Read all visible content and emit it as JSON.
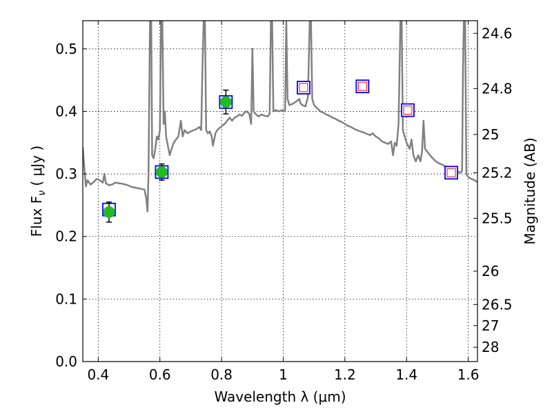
{
  "chart_data": {
    "type": "scatter",
    "xlabel": "Wavelength  λ (μm)",
    "ylabel": "Flux  F",
    "ylabel_sub": "ν",
    "ylabel_unit": " ( μJy )",
    "y2label": "Magnitude (AB)",
    "xlim": [
      0.35,
      1.63
    ],
    "ylim": [
      0.0,
      0.545
    ],
    "grid": true,
    "x_ticks": [
      {
        "value": 0.4,
        "label": "0.4"
      },
      {
        "value": 0.6,
        "label": "0.6"
      },
      {
        "value": 0.8,
        "label": "0.8"
      },
      {
        "value": 1.0,
        "label": "1"
      },
      {
        "value": 1.2,
        "label": "1.2"
      },
      {
        "value": 1.4,
        "label": "1.4"
      },
      {
        "value": 1.6,
        "label": "1.6"
      }
    ],
    "y_ticks": [
      {
        "value": 0.0,
        "label": "0.0"
      },
      {
        "value": 0.1,
        "label": "0.1"
      },
      {
        "value": 0.2,
        "label": "0.2"
      },
      {
        "value": 0.3,
        "label": "0.3"
      },
      {
        "value": 0.4,
        "label": "0.4"
      },
      {
        "value": 0.5,
        "label": "0.5"
      }
    ],
    "y2_ticks": [
      {
        "mag": 24.6,
        "label": "24.6"
      },
      {
        "mag": 24.8,
        "label": "24.8"
      },
      {
        "mag": 25.0,
        "label": "25"
      },
      {
        "mag": 25.2,
        "label": "25.2"
      },
      {
        "mag": 25.5,
        "label": "25.5"
      },
      {
        "mag": 26.0,
        "label": "26"
      },
      {
        "mag": 26.5,
        "label": "26.5"
      },
      {
        "mag": 27.0,
        "label": "27"
      },
      {
        "mag": 28.0,
        "label": "28"
      }
    ],
    "series": [
      {
        "kind": "observed",
        "color": "#22bb22",
        "points": [
          {
            "x": 0.435,
            "y": 0.239,
            "err": 0.016
          },
          {
            "x": 0.606,
            "y": 0.303,
            "err": 0.013
          },
          {
            "x": 0.814,
            "y": 0.415,
            "err": 0.019
          }
        ]
      },
      {
        "kind": "model",
        "color": "#0000ff",
        "points": [
          {
            "x": 0.435,
            "y": 0.243
          },
          {
            "x": 0.606,
            "y": 0.303
          },
          {
            "x": 0.814,
            "y": 0.415
          }
        ]
      },
      {
        "kind": "upper",
        "color": "#0000ff",
        "inner_color": "#ff0000",
        "points": [
          {
            "x": 1.066,
            "y": 0.438
          },
          {
            "x": 1.257,
            "y": 0.44
          },
          {
            "x": 1.404,
            "y": 0.402
          },
          {
            "x": 1.545,
            "y": 0.302
          }
        ]
      }
    ],
    "sed_curve": {
      "color": "#808080",
      "points": [
        [
          0.35,
          0.343
        ],
        [
          0.355,
          0.31
        ],
        [
          0.36,
          0.28
        ],
        [
          0.365,
          0.29
        ],
        [
          0.375,
          0.283
        ],
        [
          0.385,
          0.287
        ],
        [
          0.395,
          0.292
        ],
        [
          0.405,
          0.29
        ],
        [
          0.415,
          0.286
        ],
        [
          0.42,
          0.3
        ],
        [
          0.425,
          0.285
        ],
        [
          0.435,
          0.282
        ],
        [
          0.445,
          0.283
        ],
        [
          0.455,
          0.286
        ],
        [
          0.47,
          0.285
        ],
        [
          0.49,
          0.283
        ],
        [
          0.51,
          0.279
        ],
        [
          0.53,
          0.277
        ],
        [
          0.55,
          0.275
        ],
        [
          0.556,
          0.26
        ],
        [
          0.56,
          0.24
        ],
        [
          0.563,
          0.3
        ],
        [
          0.568,
          0.545
        ],
        [
          0.572,
          0.545
        ],
        [
          0.575,
          0.33
        ],
        [
          0.58,
          0.325
        ],
        [
          0.585,
          0.34
        ],
        [
          0.59,
          0.36
        ],
        [
          0.595,
          0.355
        ],
        [
          0.6,
          0.37
        ],
        [
          0.604,
          0.545
        ],
        [
          0.608,
          0.545
        ],
        [
          0.612,
          0.38
        ],
        [
          0.616,
          0.4
        ],
        [
          0.62,
          0.36
        ],
        [
          0.626,
          0.345
        ],
        [
          0.632,
          0.33
        ],
        [
          0.638,
          0.34
        ],
        [
          0.645,
          0.35
        ],
        [
          0.652,
          0.355
        ],
        [
          0.66,
          0.36
        ],
        [
          0.668,
          0.385
        ],
        [
          0.674,
          0.36
        ],
        [
          0.68,
          0.37
        ],
        [
          0.69,
          0.365
        ],
        [
          0.7,
          0.368
        ],
        [
          0.71,
          0.37
        ],
        [
          0.72,
          0.372
        ],
        [
          0.728,
          0.375
        ],
        [
          0.734,
          0.37
        ],
        [
          0.738,
          0.47
        ],
        [
          0.742,
          0.545
        ],
        [
          0.746,
          0.545
        ],
        [
          0.75,
          0.37
        ],
        [
          0.756,
          0.365
        ],
        [
          0.762,
          0.368
        ],
        [
          0.768,
          0.36
        ],
        [
          0.772,
          0.345
        ],
        [
          0.776,
          0.355
        ],
        [
          0.78,
          0.365
        ],
        [
          0.786,
          0.37
        ],
        [
          0.792,
          0.373
        ],
        [
          0.798,
          0.375
        ],
        [
          0.804,
          0.378
        ],
        [
          0.81,
          0.38
        ],
        [
          0.818,
          0.385
        ],
        [
          0.826,
          0.39
        ],
        [
          0.834,
          0.385
        ],
        [
          0.842,
          0.39
        ],
        [
          0.85,
          0.392
        ],
        [
          0.858,
          0.395
        ],
        [
          0.866,
          0.393
        ],
        [
          0.874,
          0.398
        ],
        [
          0.882,
          0.4
        ],
        [
          0.89,
          0.396
        ],
        [
          0.896,
          0.38
        ],
        [
          0.9,
          0.5
        ],
        [
          0.904,
          0.4
        ],
        [
          0.912,
          0.395
        ],
        [
          0.92,
          0.392
        ],
        [
          0.93,
          0.395
        ],
        [
          0.94,
          0.393
        ],
        [
          0.95,
          0.392
        ],
        [
          0.956,
          0.396
        ],
        [
          0.96,
          0.545
        ],
        [
          0.964,
          0.545
        ],
        [
          0.968,
          0.4
        ],
        [
          0.976,
          0.402
        ],
        [
          0.986,
          0.4
        ],
        [
          0.996,
          0.402
        ],
        [
          1.006,
          0.4
        ],
        [
          1.01,
          0.545
        ],
        [
          1.014,
          0.42
        ],
        [
          1.02,
          0.41
        ],
        [
          1.03,
          0.412
        ],
        [
          1.04,
          0.415
        ],
        [
          1.048,
          0.418
        ],
        [
          1.052,
          0.42
        ],
        [
          1.056,
          0.413
        ],
        [
          1.062,
          0.41
        ],
        [
          1.072,
          0.408
        ],
        [
          1.08,
          0.422
        ],
        [
          1.086,
          0.545
        ],
        [
          1.09,
          0.545
        ],
        [
          1.094,
          0.42
        ],
        [
          1.1,
          0.41
        ],
        [
          1.11,
          0.405
        ],
        [
          1.12,
          0.4
        ],
        [
          1.13,
          0.398
        ],
        [
          1.14,
          0.395
        ],
        [
          1.15,
          0.393
        ],
        [
          1.16,
          0.39
        ],
        [
          1.17,
          0.388
        ],
        [
          1.18,
          0.385
        ],
        [
          1.19,
          0.383
        ],
        [
          1.2,
          0.38
        ],
        [
          1.21,
          0.377
        ],
        [
          1.22,
          0.375
        ],
        [
          1.23,
          0.372
        ],
        [
          1.24,
          0.37
        ],
        [
          1.25,
          0.368
        ],
        [
          1.262,
          0.366
        ],
        [
          1.272,
          0.364
        ],
        [
          1.282,
          0.362
        ],
        [
          1.29,
          0.365
        ],
        [
          1.3,
          0.36
        ],
        [
          1.31,
          0.357
        ],
        [
          1.32,
          0.352
        ],
        [
          1.33,
          0.35
        ],
        [
          1.34,
          0.348
        ],
        [
          1.35,
          0.352
        ],
        [
          1.356,
          0.33
        ],
        [
          1.362,
          0.35
        ],
        [
          1.368,
          0.345
        ],
        [
          1.374,
          0.38
        ],
        [
          1.38,
          0.545
        ],
        [
          1.384,
          0.545
        ],
        [
          1.388,
          0.37
        ],
        [
          1.394,
          0.36
        ],
        [
          1.4,
          0.35
        ],
        [
          1.41,
          0.34
        ],
        [
          1.416,
          0.355
        ],
        [
          1.422,
          0.33
        ],
        [
          1.43,
          0.32
        ],
        [
          1.438,
          0.33
        ],
        [
          1.445,
          0.32
        ],
        [
          1.45,
          0.335
        ],
        [
          1.455,
          0.385
        ],
        [
          1.46,
          0.34
        ],
        [
          1.468,
          0.335
        ],
        [
          1.476,
          0.33
        ],
        [
          1.485,
          0.325
        ],
        [
          1.495,
          0.32
        ],
        [
          1.505,
          0.317
        ],
        [
          1.515,
          0.315
        ],
        [
          1.525,
          0.312
        ],
        [
          1.535,
          0.31
        ],
        [
          1.545,
          0.308
        ],
        [
          1.555,
          0.306
        ],
        [
          1.565,
          0.304
        ],
        [
          1.575,
          0.302
        ],
        [
          1.58,
          0.305
        ],
        [
          1.583,
          0.47
        ],
        [
          1.586,
          0.545
        ],
        [
          1.59,
          0.545
        ],
        [
          1.594,
          0.3
        ],
        [
          1.6,
          0.295
        ],
        [
          1.61,
          0.292
        ],
        [
          1.62,
          0.29
        ],
        [
          1.63,
          0.287
        ]
      ]
    }
  }
}
